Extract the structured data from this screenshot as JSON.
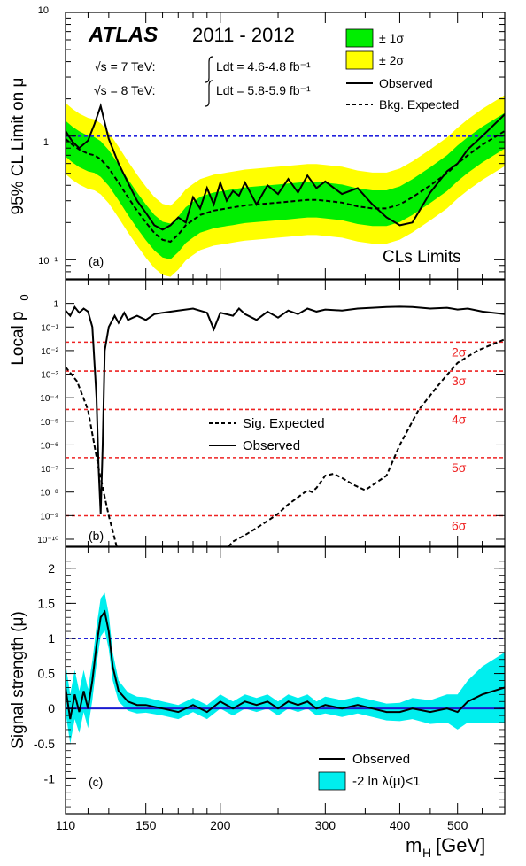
{
  "experiment": "ATLAS",
  "period": "2011 - 2012",
  "lumi_7": {
    "prefix": "√s = 7 TeV:",
    "text": "Ldt = 4.6-4.8 fb⁻¹"
  },
  "lumi_8": {
    "prefix": "√s = 8 TeV:",
    "text": "Ldt = 5.8-5.9 fb⁻¹"
  },
  "xlabel": "m",
  "xlabel_sub": "H",
  "xlabel_unit": "[GeV]",
  "colors": {
    "band1": "#00ee00",
    "band2": "#ffff00",
    "cyan": "#00eeee",
    "ref_blue": "#2222dd",
    "sigma_red": "#ee2222",
    "zero_line": "#1a1ad0"
  },
  "chart_data": [
    {
      "panel": "(a)",
      "type": "line",
      "ylabel": "95% CL Limit on μ",
      "yscale": "log",
      "ylim": [
        0.07,
        10
      ],
      "ytick_labels": [
        "10⁻¹",
        "1",
        "10"
      ],
      "xlim": [
        110,
        600
      ],
      "xtick_labels": [
        "110",
        "150",
        "200",
        "300",
        "400",
        "500"
      ],
      "corner_label": "CLs Limits",
      "legend": [
        "± 1σ",
        "± 2σ",
        "Observed",
        "Bkg. Expected"
      ],
      "reference_line": 1,
      "x": [
        110,
        113,
        116,
        120,
        123,
        126,
        130,
        135,
        140,
        145,
        150,
        155,
        160,
        165,
        170,
        175,
        180,
        185,
        190,
        195,
        200,
        205,
        210,
        215,
        220,
        230,
        240,
        250,
        260,
        270,
        280,
        290,
        300,
        320,
        340,
        360,
        380,
        400,
        420,
        450,
        480,
        500,
        520,
        550,
        600
      ],
      "expected": [
        0.95,
        0.85,
        0.78,
        0.72,
        0.7,
        0.65,
        0.55,
        0.42,
        0.32,
        0.25,
        0.2,
        0.165,
        0.145,
        0.14,
        0.16,
        0.19,
        0.21,
        0.23,
        0.24,
        0.25,
        0.255,
        0.26,
        0.265,
        0.27,
        0.275,
        0.28,
        0.285,
        0.29,
        0.295,
        0.3,
        0.305,
        0.305,
        0.3,
        0.29,
        0.27,
        0.26,
        0.26,
        0.28,
        0.32,
        0.4,
        0.5,
        0.6,
        0.7,
        0.85,
        1.1
      ],
      "observed": [
        1.1,
        0.9,
        0.8,
        0.92,
        1.25,
        1.75,
        0.95,
        0.6,
        0.42,
        0.3,
        0.24,
        0.19,
        0.175,
        0.19,
        0.22,
        0.2,
        0.32,
        0.26,
        0.38,
        0.28,
        0.42,
        0.3,
        0.36,
        0.33,
        0.42,
        0.28,
        0.4,
        0.34,
        0.45,
        0.35,
        0.48,
        0.38,
        0.43,
        0.34,
        0.38,
        0.28,
        0.22,
        0.19,
        0.2,
        0.35,
        0.52,
        0.6,
        0.78,
        1.0,
        1.5
      ]
    },
    {
      "panel": "(b)",
      "type": "line",
      "ylabel": "Local p",
      "ylabel_sub": "0",
      "yscale": "log",
      "ylim": [
        5e-11,
        10
      ],
      "ytick_labels": [
        "1",
        "10⁻¹",
        "10⁻²",
        "10⁻³",
        "10⁻⁴",
        "10⁻⁵",
        "10⁻⁶",
        "10⁻⁷",
        "10⁻⁸",
        "10⁻⁹",
        "10⁻¹⁰"
      ],
      "xlim": [
        110,
        600
      ],
      "sigma_lines": [
        {
          "label": "2σ",
          "p": 0.0228
        },
        {
          "label": "3σ",
          "p": 0.00135
        },
        {
          "label": "4σ",
          "p": 3.17e-05
        },
        {
          "label": "5σ",
          "p": 2.87e-07
        },
        {
          "label": "6σ",
          "p": 9.87e-10
        }
      ],
      "legend": [
        "Sig. Expected",
        "Observed"
      ],
      "observed_x": [
        110,
        112,
        114,
        116,
        118,
        120,
        122,
        124,
        125,
        126,
        127,
        128,
        130,
        133,
        135,
        138,
        140,
        145,
        150,
        155,
        160,
        170,
        180,
        190,
        195,
        200,
        210,
        215,
        220,
        230,
        240,
        250,
        260,
        270,
        280,
        290,
        300,
        320,
        340,
        360,
        380,
        400,
        420,
        450,
        480,
        500,
        520,
        550,
        600
      ],
      "observed": [
        0.5,
        0.3,
        0.7,
        0.4,
        0.6,
        0.45,
        0.1,
        0.0001,
        1e-07,
        1.2e-09,
        1e-06,
        0.01,
        0.1,
        0.3,
        0.15,
        0.4,
        0.2,
        0.3,
        0.2,
        0.35,
        0.4,
        0.5,
        0.6,
        0.4,
        0.08,
        0.4,
        0.3,
        0.6,
        0.35,
        0.2,
        0.45,
        0.25,
        0.5,
        0.35,
        0.6,
        0.45,
        0.55,
        0.5,
        0.6,
        0.65,
        0.7,
        0.72,
        0.7,
        0.6,
        0.65,
        0.55,
        0.6,
        0.45,
        0.35
      ],
      "expected_x": [
        110,
        115,
        120,
        125,
        130,
        134,
        137,
        200,
        203,
        210,
        220,
        230,
        240,
        250,
        260,
        270,
        280,
        285,
        290,
        300,
        310,
        320,
        335,
        350,
        380,
        400,
        430,
        470,
        500,
        540,
        600
      ],
      "expected": [
        0.002,
        0.0005,
        3e-05,
        1e-07,
        1e-09,
        5e-11,
        1e-12,
        1e-12,
        3e-11,
        8e-11,
        1.5e-10,
        3e-10,
        6e-10,
        1.2e-09,
        3e-09,
        6e-09,
        1.2e-08,
        1e-08,
        1.5e-08,
        5e-08,
        6e-08,
        4e-08,
        2e-08,
        1.2e-08,
        5e-08,
        1e-06,
        3e-05,
        0.0005,
        0.003,
        0.01,
        0.03
      ]
    },
    {
      "panel": "(c)",
      "type": "line",
      "ylabel": "Signal strength (μ)",
      "yscale": "linear",
      "ylim": [
        -1.5,
        2.3
      ],
      "ytick_labels": [
        "-1",
        "-0.5",
        "0",
        "0.5",
        "1",
        "1.5",
        "2"
      ],
      "xlim": [
        110,
        600
      ],
      "reference_line": 1,
      "legend": [
        "Observed",
        "-2 ln λ(μ)<1"
      ],
      "x": [
        110,
        112,
        114,
        116,
        118,
        120,
        122,
        124,
        126,
        128,
        130,
        132,
        135,
        140,
        145,
        150,
        160,
        170,
        180,
        190,
        200,
        210,
        220,
        230,
        240,
        250,
        260,
        270,
        280,
        290,
        300,
        320,
        340,
        360,
        380,
        400,
        420,
        450,
        480,
        500,
        520,
        550,
        600
      ],
      "mu": [
        0.3,
        -0.15,
        0.2,
        -0.05,
        0.25,
        0.0,
        0.4,
        0.9,
        1.3,
        1.38,
        1.1,
        0.6,
        0.25,
        0.1,
        0.05,
        0.05,
        0.0,
        -0.05,
        0.05,
        -0.05,
        0.1,
        0.0,
        0.1,
        0.05,
        0.1,
        0.0,
        0.1,
        0.05,
        0.1,
        0.0,
        0.05,
        0.0,
        0.05,
        0.0,
        -0.05,
        -0.05,
        0.0,
        -0.05,
        0.0,
        -0.05,
        0.1,
        0.2,
        0.3
      ],
      "band_halfwidth": [
        0.35,
        0.35,
        0.35,
        0.3,
        0.3,
        0.28,
        0.28,
        0.27,
        0.27,
        0.27,
        0.25,
        0.2,
        0.15,
        0.13,
        0.12,
        0.11,
        0.1,
        0.1,
        0.1,
        0.1,
        0.1,
        0.1,
        0.1,
        0.1,
        0.1,
        0.1,
        0.1,
        0.1,
        0.1,
        0.1,
        0.12,
        0.12,
        0.12,
        0.12,
        0.12,
        0.13,
        0.15,
        0.17,
        0.2,
        0.25,
        0.3,
        0.4,
        0.5
      ]
    }
  ]
}
